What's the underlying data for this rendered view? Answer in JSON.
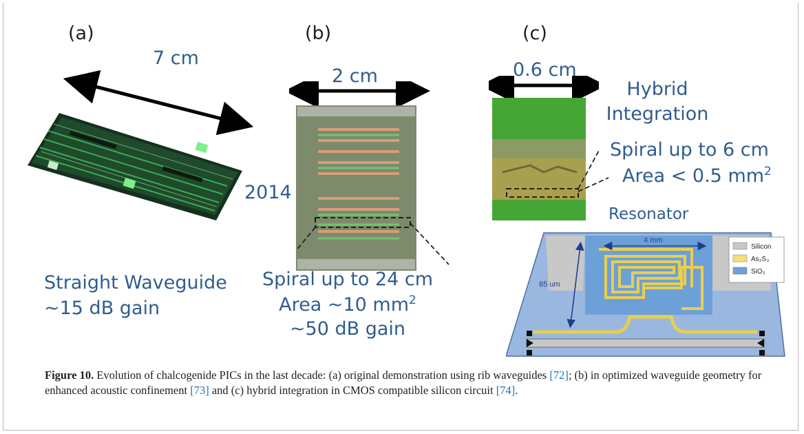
{
  "panels": {
    "a": {
      "label": "(a)",
      "dimension": "7 cm",
      "text_line1": "Straight Waveguide",
      "text_line2": "~15 dB gain"
    },
    "b": {
      "label": "(b)",
      "dimension": "2 cm",
      "year": "2014",
      "text_line1": "Spiral up to 24 cm",
      "text_line2": "Area ~10 mm",
      "text_line2_sup": "2",
      "text_line3": "~50 dB gain"
    },
    "c": {
      "label": "(c)",
      "dimension": "0.6 cm",
      "title_line1": "Hybrid",
      "title_line2": "Integration",
      "spiral_line1": "Spiral up to 6 cm",
      "spiral_line2": "Area < 0.5 mm",
      "spiral_line2_sup": "2",
      "resonator_label": "Resonator",
      "diagram": {
        "width_label": "4 mm",
        "height_label": "85 um",
        "legend": [
          {
            "label": "Silicon",
            "color": "#c8c8c8"
          },
          {
            "label": "As₂S₃",
            "color": "#f2e27a"
          },
          {
            "label": "SiO₂",
            "color": "#6ea0d8"
          }
        ]
      }
    }
  },
  "caption": {
    "figure_label": "Figure 10.",
    "text_1": " Evolution of chalcogenide PICs in the last decade: (a) original demonstration using rib waveguides ",
    "ref_1": "[72]",
    "text_2": "; (b) in optimized waveguide geometry for enhanced acoustic confinement ",
    "ref_2": "[73]",
    "text_3": " and (c) hybrid integration in CMOS compatible silicon circuit ",
    "ref_3": "[74]",
    "text_4": "."
  }
}
